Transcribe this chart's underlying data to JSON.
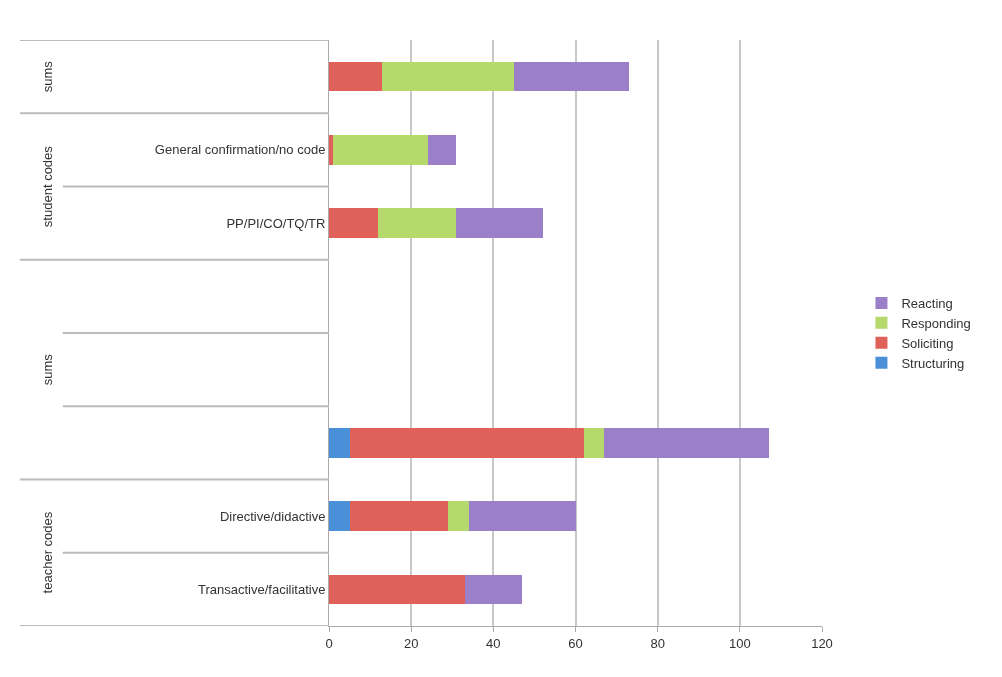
{
  "chart_data": {
    "type": "bar",
    "orientation": "horizontal",
    "stacked": true,
    "categories": [
      null,
      "General confirmation/no code",
      "PP/PI/CO/TQ/TR",
      null,
      null,
      null,
      "Directive/didactive",
      "Transactive/facilitative"
    ],
    "series": [
      {
        "name": "Structuring",
        "color": "#4a90d9",
        "values": [
          0,
          0,
          0,
          null,
          null,
          5,
          5,
          0
        ]
      },
      {
        "name": "Soliciting",
        "color": "#e0605a",
        "values": [
          13,
          1,
          12,
          null,
          null,
          57,
          24,
          33
        ]
      },
      {
        "name": "Responding",
        "color": "#b5d96a",
        "values": [
          32,
          23,
          19,
          null,
          null,
          5,
          5,
          0
        ]
      },
      {
        "name": "Reacting",
        "color": "#9b7fc8",
        "values": [
          28,
          7,
          21,
          null,
          null,
          40,
          26,
          14
        ]
      }
    ],
    "xlim": [
      0,
      120
    ],
    "xticks": [
      0,
      20,
      40,
      60,
      80,
      100,
      120
    ],
    "grid": "x",
    "legend": "right",
    "annotations": [
      "sums",
      "student codes",
      "sums",
      "teacher codes"
    ]
  }
}
